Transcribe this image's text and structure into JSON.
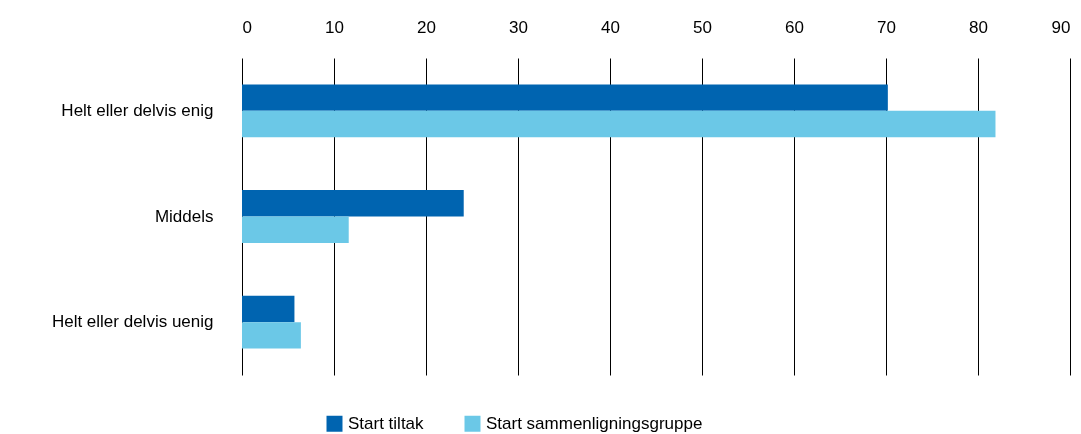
{
  "chart_data": {
    "type": "bar",
    "orientation": "horizontal",
    "categories": [
      "Helt eller delvis enig",
      "Middels",
      "Helt eller delvis uenig"
    ],
    "series": [
      {
        "name": "Start tiltak",
        "color": "#0064b0",
        "values": [
          70.2,
          24.1,
          5.7
        ]
      },
      {
        "name": "Start sammenligningsgruppe",
        "color": "#6bc8e7",
        "values": [
          81.9,
          11.6,
          6.4
        ]
      }
    ],
    "xlim": [
      0,
      90
    ],
    "xticks": [
      0,
      10,
      20,
      30,
      40,
      50,
      60,
      70,
      80,
      90
    ],
    "grid": "x",
    "legend": "bottom"
  }
}
